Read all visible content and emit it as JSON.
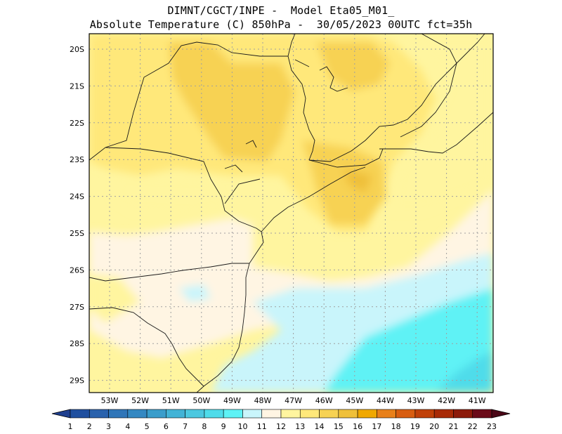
{
  "header": {
    "line1": "DIMNT/CGCT/INPE -  Model Eta05_M01_",
    "line2": "Absolute Temperature (C) 850hPa -  30/05/2023 00UTC fct=35h"
  },
  "map": {
    "lat_labels": [
      "20S",
      "21S",
      "22S",
      "23S",
      "24S",
      "25S",
      "26S",
      "27S",
      "28S",
      "29S"
    ],
    "lon_labels": [
      "53W",
      "52W",
      "51W",
      "50W",
      "49W",
      "48W",
      "47W",
      "46W",
      "45W",
      "44W",
      "43W",
      "42W",
      "41W"
    ]
  },
  "colorbar": {
    "labels": [
      "1",
      "2",
      "3",
      "4",
      "5",
      "6",
      "7",
      "8",
      "9",
      "10",
      "11",
      "12",
      "13",
      "14",
      "15",
      "16",
      "17",
      "18",
      "19",
      "20",
      "21",
      "22",
      "23"
    ],
    "colors": [
      "#1f3f8f",
      "#1f4f9f",
      "#2a62ad",
      "#2f75b8",
      "#3488c2",
      "#3a9dcb",
      "#42b3d6",
      "#4cc8e0",
      "#4fdcea",
      "#5ef2f5",
      "#c9f5fb",
      "#fff5e3",
      "#fff59f",
      "#ffe87a",
      "#f7d253",
      "#efc03a",
      "#f0a800",
      "#e8801a",
      "#d85d10",
      "#c04008",
      "#a82a06",
      "#8c1a0a",
      "#6a0a18",
      "#4a0616"
    ]
  }
}
